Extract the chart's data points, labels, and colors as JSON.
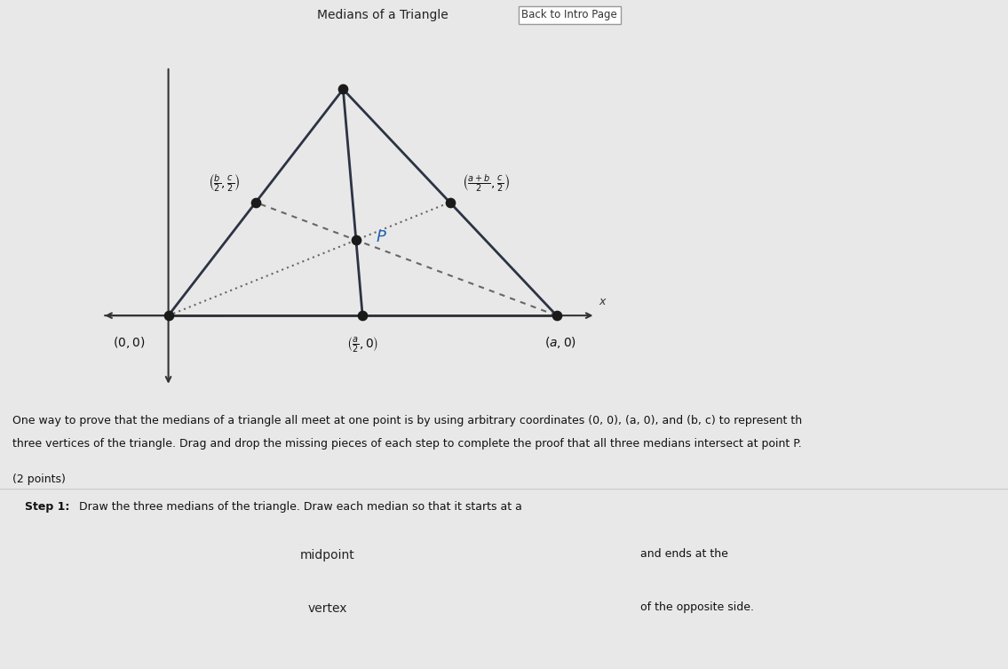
{
  "page_bg": "#e8e8e8",
  "graph_bg": "#e0e0e0",
  "graph_inner_bg": "#e8e8e8",
  "teal_bar_color": "#5bbcca",
  "triangle_color": "#2c3344",
  "median_solid_color": "#2c3344",
  "median_dashed_color": "#666666",
  "point_color": "#1a1a1a",
  "P_color": "#2060b0",
  "axis_color": "#333333",
  "header_bg": "#d8d8d8",
  "body_bg": "#e8e8e8",
  "step_box_bg": "#ffffff",
  "input_box_bg": "#e0e0e0",
  "input_box_border": "#aaaaaa",
  "header_text": "Medians of a Triangle",
  "header_btn": "Back to Intro Page",
  "body_text1": "One way to prove that the medians of a triangle all meet at one point is by using arbitrary coordinates (0, 0), (a, 0), and (b, c) to represent th",
  "body_text2": "three vertices of the triangle. Drag and drop the missing pieces of each step to complete the proof that all three medians intersect at point P.",
  "points_text": "(2 points)",
  "step1_label": "Step 1:",
  "step1_text": " Draw the three medians of the triangle. Draw each median so that it starts at a",
  "box1_text": "midpoint",
  "box1_suffix": "and ends at the",
  "box2_text": "vertex",
  "box2_suffix": "of the opposite side.",
  "A": [
    0.0,
    0.0
  ],
  "B": [
    1.0,
    0.0
  ],
  "C": [
    0.45,
    0.8
  ]
}
